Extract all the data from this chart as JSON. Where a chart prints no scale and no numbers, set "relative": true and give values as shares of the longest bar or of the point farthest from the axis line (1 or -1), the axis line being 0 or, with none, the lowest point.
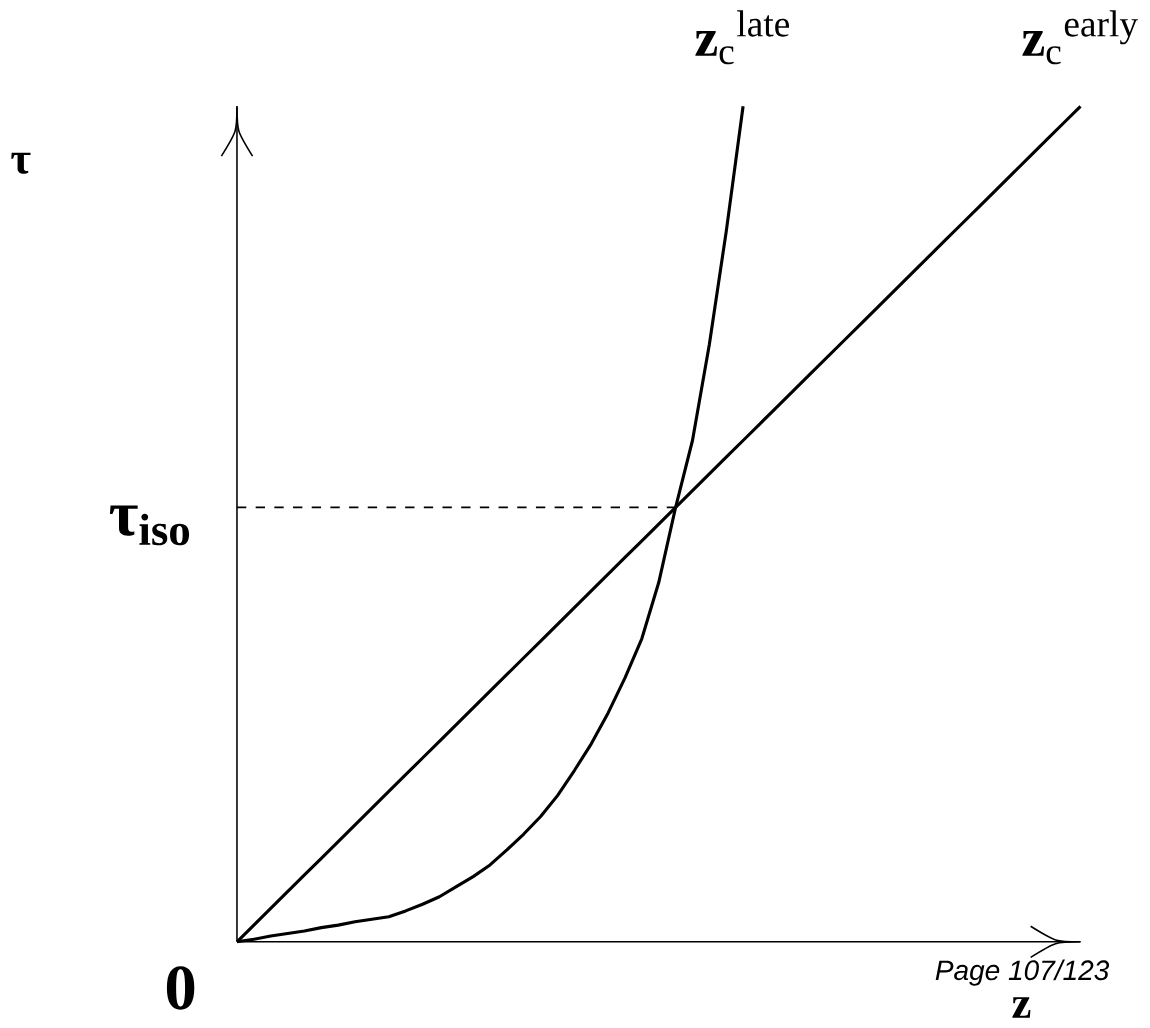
{
  "chart_data": {
    "type": "line",
    "relative": true,
    "ylabel": "τ",
    "xlabel": "z",
    "legend": false,
    "marker": "none",
    "line_style": "solid",
    "categories": [
      null,
      null,
      null,
      null,
      null,
      null,
      null,
      null,
      null,
      null,
      null,
      null,
      null,
      null,
      null,
      null,
      null,
      null,
      null,
      null,
      null,
      null,
      null,
      null,
      null,
      null,
      null,
      null,
      null,
      null,
      null,
      null,
      null,
      null,
      null,
      null,
      null,
      null,
      null,
      null,
      null,
      null,
      null,
      null,
      null,
      null,
      null,
      null,
      null,
      null,
      null
    ],
    "series": [
      {
        "name": "**z**$_{c}$$^{late}$",
        "color": "#000000",
        "values": [
          0,
          0.003,
          0.007,
          0.01,
          0.013,
          0.017,
          0.02,
          0.024,
          0.027,
          0.03,
          0.037,
          0.045,
          0.054,
          0.066,
          0.078,
          0.092,
          0.11,
          0.129,
          0.15,
          0.175,
          0.205,
          0.237,
          0.274,
          0.316,
          0.363,
          0.43,
          0.52,
          0.6,
          0.715,
          0.85,
          1.0,
          null,
          null,
          null,
          null,
          null,
          null,
          null,
          null,
          null,
          null,
          null,
          null,
          null,
          null,
          null,
          null,
          null,
          null,
          null,
          null
        ]
      },
      {
        "name": "**z**$_{c}$$^{early}$",
        "color": "#000000",
        "values": [
          0,
          0.02,
          0.04,
          0.06,
          0.08,
          0.1,
          0.12,
          0.14,
          0.16,
          0.18,
          0.2,
          0.22,
          0.24,
          0.26,
          0.28,
          0.3,
          0.32,
          0.34,
          0.36,
          0.38,
          0.4,
          0.42,
          0.44,
          0.46,
          0.48,
          0.5,
          0.52,
          0.54,
          0.56,
          0.58,
          0.6,
          0.62,
          0.64,
          0.66,
          0.68,
          0.7,
          0.72,
          0.74,
          0.76,
          0.78,
          0.8,
          0.82,
          0.84,
          0.86,
          0.88,
          0.9,
          0.92,
          0.94,
          0.96,
          0.98,
          1.0
        ]
      },
      {
        "color": "#000000",
        "line_style": "dashed",
        "values": [
          0.52,
          0.52,
          0.52,
          0.52,
          0.52,
          0.52,
          0.52,
          0.52,
          0.52,
          0.52,
          0.52,
          0.52,
          0.52,
          0.52,
          0.52,
          0.52,
          0.52,
          0.52,
          0.52,
          0.52,
          0.52,
          0.52,
          0.52,
          0.52,
          0.52,
          0.52,
          0.52,
          null,
          null,
          null,
          null,
          null,
          null,
          null,
          null,
          null,
          null,
          null,
          null,
          null,
          null,
          null,
          null,
          null,
          null,
          null,
          null,
          null,
          null,
          null,
          null
        ]
      }
    ],
    "annotations": [
      "τ$_{iso}$",
      "0",
      "Page 107/123"
    ]
  }
}
